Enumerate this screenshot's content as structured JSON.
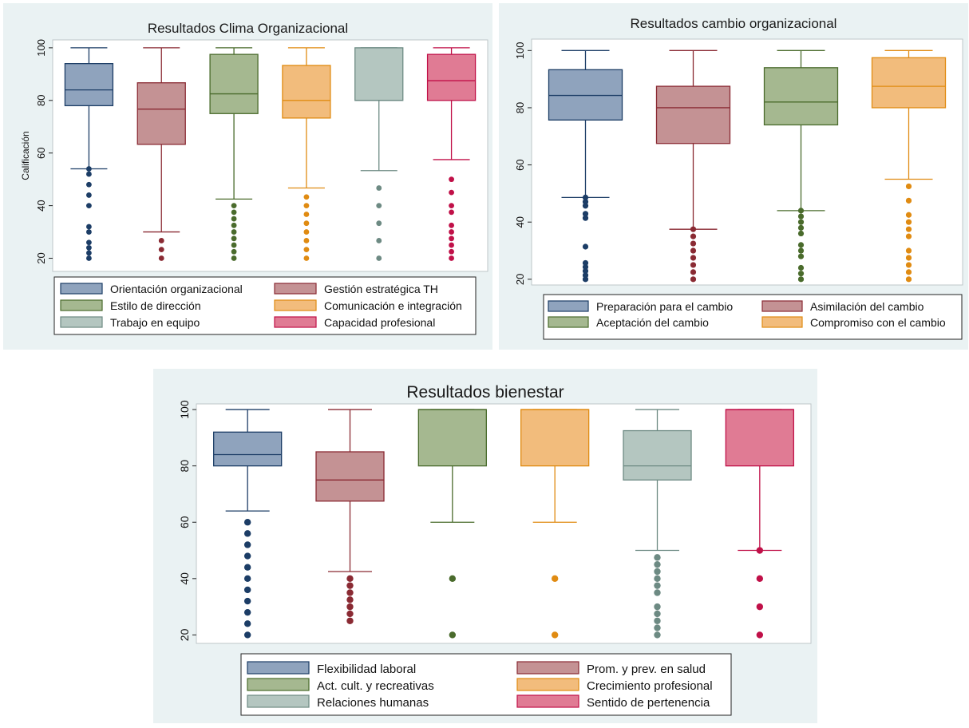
{
  "chart_data": [
    {
      "type": "box",
      "title": "Resultados Clima Organizacional",
      "ylabel": "Calificación",
      "ylim": [
        15,
        103
      ],
      "yticks": [
        20,
        40,
        60,
        80,
        100
      ],
      "legend_position": "bottom",
      "series": [
        {
          "name": "Orientación organizacional",
          "color": "#8fa3bd",
          "stroke": "#1c3d66",
          "dot": "#1c3d66",
          "whisker_low": 54,
          "q1": 78,
          "median": 84,
          "q3": 94,
          "whisker_high": 100,
          "outliers": [
            20,
            22,
            24,
            26,
            30,
            32,
            40,
            44,
            48,
            52,
            54
          ]
        },
        {
          "name": "Gestión estratégica TH",
          "color": "#c49294",
          "stroke": "#8a2a33",
          "dot": "#8a2a33",
          "whisker_low": 30,
          "q1": 63.3,
          "median": 76.7,
          "q3": 86.7,
          "whisker_high": 100,
          "outliers": [
            20,
            23.3,
            26.7
          ]
        },
        {
          "name": "Estilo de dirección",
          "color": "#a5b890",
          "stroke": "#4a6b2c",
          "dot": "#4a6b2c",
          "whisker_low": 42.5,
          "q1": 75,
          "median": 82.5,
          "q3": 97.5,
          "whisker_high": 100,
          "outliers": [
            20,
            22.5,
            25,
            27.5,
            30,
            32.5,
            35,
            37.5,
            40
          ]
        },
        {
          "name": "Comunicación e integración",
          "color": "#f2bc7c",
          "stroke": "#e08b12",
          "dot": "#e08b12",
          "whisker_low": 46.7,
          "q1": 73.3,
          "median": 80,
          "q3": 93.3,
          "whisker_high": 100,
          "outliers": [
            20,
            23.3,
            26.7,
            30,
            33.3,
            36.7,
            40,
            43.3
          ]
        },
        {
          "name": "Trabajo en equipo",
          "color": "#b4c6c0",
          "stroke": "#6d8a83",
          "dot": "#6d8a83",
          "whisker_low": 53.3,
          "q1": 80,
          "median": 80,
          "q3": 100,
          "whisker_high": 100,
          "outliers": [
            20,
            26.7,
            33.3,
            40,
            46.7
          ]
        },
        {
          "name": "Capacidad profesional",
          "color": "#e07b94",
          "stroke": "#c01048",
          "dot": "#c01048",
          "whisker_low": 57.5,
          "q1": 80,
          "median": 87.5,
          "q3": 97.5,
          "whisker_high": 100,
          "outliers": [
            20,
            22.5,
            25,
            27.5,
            30,
            32.5,
            37.5,
            40,
            45,
            50
          ]
        }
      ]
    },
    {
      "type": "box",
      "title": "Resultados cambio organizacional",
      "ylabel": "",
      "ylim": [
        18,
        104
      ],
      "yticks": [
        20,
        40,
        60,
        80,
        100
      ],
      "legend_position": "bottom",
      "series": [
        {
          "name": "Preparación para el cambio",
          "color": "#8fa3bd",
          "stroke": "#1c3d66",
          "dot": "#1c3d66",
          "whisker_low": 48.6,
          "q1": 75.7,
          "median": 84.3,
          "q3": 93.3,
          "whisker_high": 100,
          "outliers": [
            20,
            21.4,
            22.9,
            24.3,
            25.7,
            31.4,
            41.4,
            42.9,
            45.7,
            47.1,
            48.6
          ]
        },
        {
          "name": "Asimilación del cambio",
          "color": "#c49294",
          "stroke": "#8a2a33",
          "dot": "#8a2a33",
          "whisker_low": 37.5,
          "q1": 67.5,
          "median": 80,
          "q3": 87.5,
          "whisker_high": 100,
          "outliers": [
            20,
            22.5,
            25,
            27.5,
            30,
            32.5,
            35,
            37.5
          ]
        },
        {
          "name": "Aceptación del cambio",
          "color": "#a5b890",
          "stroke": "#4a6b2c",
          "dot": "#4a6b2c",
          "whisker_low": 44,
          "q1": 74,
          "median": 82,
          "q3": 94,
          "whisker_high": 100,
          "outliers": [
            20,
            22,
            24,
            28,
            30,
            32,
            36,
            38,
            40,
            42,
            44
          ]
        },
        {
          "name": "Compromiso con el cambio",
          "color": "#f2bc7c",
          "stroke": "#e08b12",
          "dot": "#e08b12",
          "whisker_low": 55,
          "q1": 80,
          "median": 87.5,
          "q3": 97.5,
          "whisker_high": 100,
          "outliers": [
            20,
            22.5,
            25,
            27.5,
            30,
            35,
            37.5,
            40,
            42.5,
            47.5,
            52.5
          ]
        }
      ]
    },
    {
      "type": "box",
      "title": "Resultados bienestar",
      "ylabel": "",
      "ylim": [
        17,
        102
      ],
      "yticks": [
        20,
        40,
        60,
        80,
        100
      ],
      "legend_position": "bottom",
      "series": [
        {
          "name": "Flexibilidad laboral",
          "color": "#8fa3bd",
          "stroke": "#1c3d66",
          "dot": "#1c3d66",
          "whisker_low": 64,
          "q1": 80,
          "median": 84,
          "q3": 92,
          "whisker_high": 100,
          "outliers": [
            20,
            24,
            28,
            32,
            36,
            40,
            44,
            48,
            52,
            56,
            60
          ]
        },
        {
          "name": "Prom. y prev. en salud",
          "color": "#c49294",
          "stroke": "#8a2a33",
          "dot": "#8a2a33",
          "whisker_low": 42.5,
          "q1": 67.5,
          "median": 75,
          "q3": 85,
          "whisker_high": 100,
          "outliers": [
            25,
            27.5,
            30,
            32.5,
            35,
            37.5,
            40
          ]
        },
        {
          "name": "Act. cult. y recreativas",
          "color": "#a5b890",
          "stroke": "#4a6b2c",
          "dot": "#4a6b2c",
          "whisker_low": 60,
          "q1": 80,
          "median": 100,
          "q3": 100,
          "whisker_high": 100,
          "outliers": [
            20,
            40
          ]
        },
        {
          "name": "Crecimiento profesional",
          "color": "#f2bc7c",
          "stroke": "#e08b12",
          "dot": "#e08b12",
          "whisker_low": 60,
          "q1": 80,
          "median": 100,
          "q3": 100,
          "whisker_high": 100,
          "outliers": [
            20,
            40
          ]
        },
        {
          "name": "Relaciones humanas",
          "color": "#b4c6c0",
          "stroke": "#6d8a83",
          "dot": "#6d8a83",
          "whisker_low": 50,
          "q1": 75,
          "median": 80,
          "q3": 92.5,
          "whisker_high": 100,
          "outliers": [
            20,
            22.5,
            25,
            27.5,
            30,
            35,
            37.5,
            40,
            42.5,
            45,
            47.5
          ]
        },
        {
          "name": "Sentido de pertenencia",
          "color": "#e07b94",
          "stroke": "#c01048",
          "dot": "#c01048",
          "whisker_low": 50,
          "q1": 80,
          "median": 100,
          "q3": 100,
          "whisker_high": 100,
          "outliers": [
            20,
            30,
            40,
            50
          ]
        }
      ]
    }
  ]
}
